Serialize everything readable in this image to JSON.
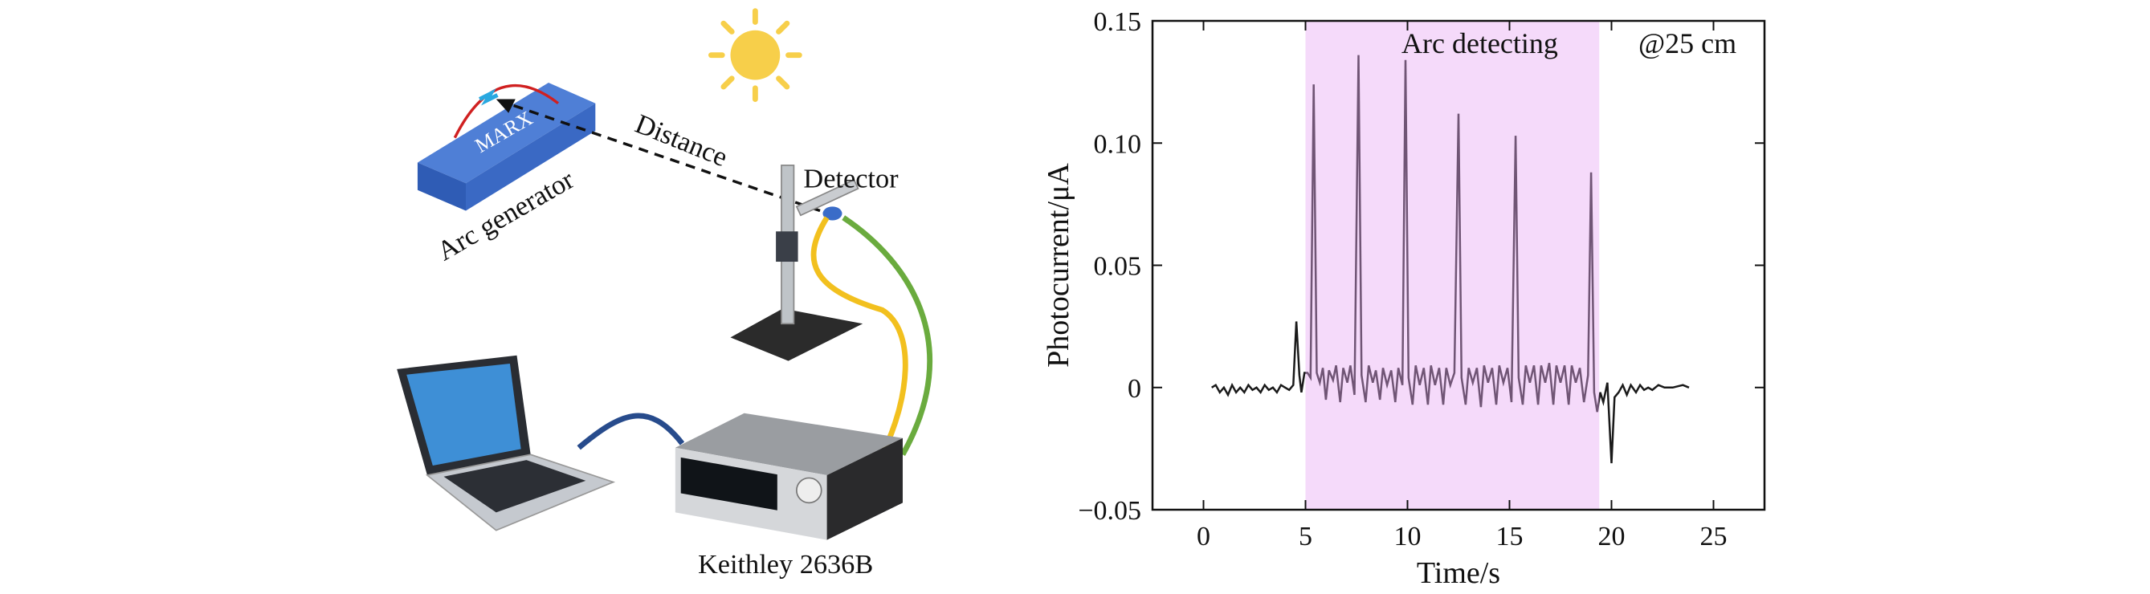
{
  "diagram": {
    "labels": {
      "marx": "MARX",
      "distance": "Distance",
      "detector": "Detector",
      "arc_generator": "Arc generator",
      "instrument": "Keithley 2636B"
    }
  },
  "chart_data": {
    "type": "line",
    "xlabel": "Time/s",
    "ylabel": "Photocurrent/μA",
    "annotations": [
      "Arc detecting",
      "@25 cm"
    ],
    "highlight": {
      "xrange": [
        5.0,
        19.4
      ],
      "color": "#e6a8f2"
    },
    "color": "#1a1a1a",
    "x": [
      0.4,
      0.6,
      0.8,
      1.0,
      1.2,
      1.4,
      1.6,
      1.8,
      2.0,
      2.2,
      2.4,
      2.6,
      2.8,
      3.0,
      3.2,
      3.4,
      3.6,
      3.8,
      4.0,
      4.2,
      4.4,
      4.55,
      4.7,
      4.8,
      4.95,
      5.1,
      5.25,
      5.4,
      5.55,
      5.7,
      5.85,
      6.0,
      6.15,
      6.35,
      6.5,
      6.7,
      6.85,
      7.05,
      7.2,
      7.4,
      7.6,
      7.75,
      7.95,
      8.1,
      8.3,
      8.45,
      8.65,
      8.8,
      9.0,
      9.2,
      9.4,
      9.55,
      9.75,
      9.9,
      10.05,
      10.25,
      10.4,
      10.6,
      10.8,
      11.0,
      11.15,
      11.35,
      11.55,
      11.75,
      11.9,
      12.1,
      12.3,
      12.5,
      12.65,
      12.85,
      13.0,
      13.2,
      13.4,
      13.6,
      13.75,
      13.95,
      14.15,
      14.35,
      14.5,
      14.7,
      14.9,
      15.1,
      15.3,
      15.45,
      15.65,
      15.8,
      16.0,
      16.2,
      16.4,
      16.55,
      16.75,
      16.95,
      17.15,
      17.3,
      17.5,
      17.7,
      17.9,
      18.05,
      18.25,
      18.45,
      18.65,
      18.85,
      19.0,
      19.15,
      19.3,
      19.45,
      19.6,
      19.8,
      20.0,
      20.15,
      20.35,
      20.55,
      20.75,
      20.95,
      21.2,
      21.4,
      21.6,
      21.8,
      22.0,
      22.3,
      22.6,
      23.0,
      23.5,
      23.8
    ],
    "values": [
      0,
      0.001,
      -0.002,
      0,
      -0.003,
      0.001,
      -0.002,
      0,
      -0.002,
      0.001,
      -0.001,
      0,
      -0.002,
      0.001,
      -0.001,
      0,
      -0.002,
      0.001,
      0,
      -0.001,
      0.001,
      0.027,
      0.005,
      -0.002,
      0.006,
      0.006,
      0.004,
      0.124,
      0.006,
      0.002,
      0.008,
      -0.005,
      0.007,
      0.003,
      0.009,
      -0.006,
      0.008,
      0.002,
      0.009,
      -0.003,
      0.136,
      0.005,
      -0.006,
      0.009,
      0.002,
      0.007,
      -0.005,
      0.008,
      0.001,
      0.007,
      -0.006,
      0.008,
      0.001,
      0.134,
      0.004,
      -0.007,
      0.009,
      0.001,
      0.008,
      -0.007,
      0.009,
      0.001,
      0.008,
      -0.007,
      0.008,
      0.001,
      0.006,
      0.112,
      0.004,
      -0.007,
      0.008,
      0.002,
      0.008,
      -0.008,
      0.009,
      0.002,
      0.008,
      -0.007,
      0.009,
      0.002,
      0.008,
      -0.006,
      0.103,
      0.004,
      -0.007,
      0.009,
      0.002,
      0.009,
      -0.007,
      0.009,
      0.002,
      0.01,
      -0.007,
      0.009,
      0.002,
      0.009,
      -0.007,
      0.009,
      0.002,
      0.008,
      -0.006,
      0.005,
      0.088,
      -0.002,
      -0.01,
      -0.002,
      -0.006,
      0.002,
      -0.031,
      -0.004,
      -0.002,
      0.001,
      -0.003,
      0.001,
      -0.002,
      0.001,
      -0.001,
      0,
      -0.001,
      0.001,
      0,
      0,
      0.001,
      0
    ],
    "xlim": [
      -2.5,
      27.5
    ],
    "ylim": [
      -0.05,
      0.15
    ],
    "xticks": [
      0,
      5,
      10,
      15,
      20,
      25
    ],
    "yticks": [
      {
        "value": -0.05,
        "label": "−0.05"
      },
      0,
      0.05,
      {
        "value": 0.1,
        "label": "0.10"
      },
      0.15
    ]
  }
}
